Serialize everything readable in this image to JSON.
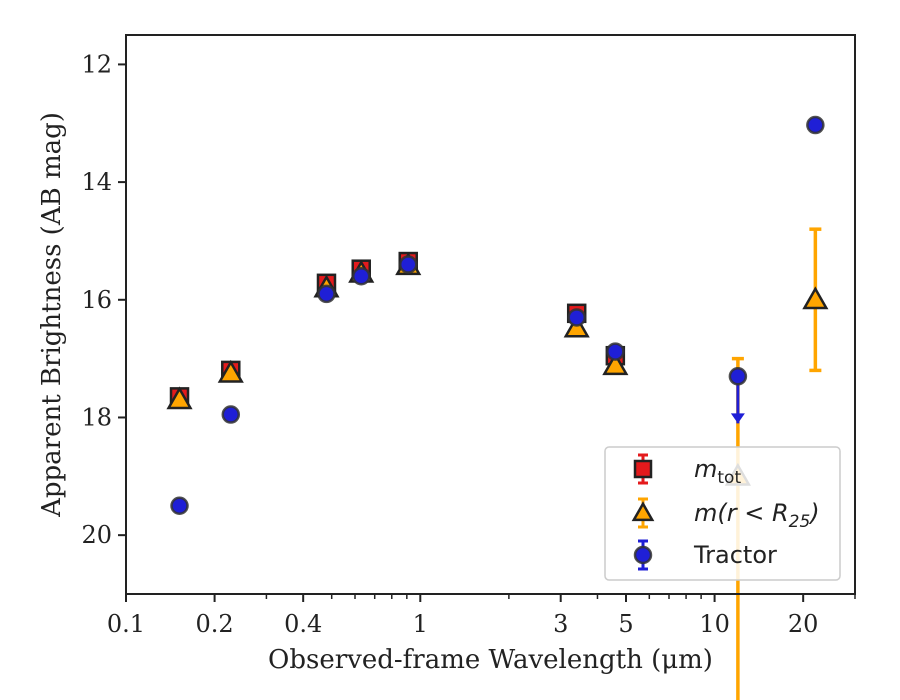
{
  "chart_data": {
    "type": "scatter",
    "xlabel": "Observed-frame Wavelength (μm)",
    "ylabel": "Apparent Brightness (AB mag)",
    "xscale": "log",
    "xlim": [
      0.1,
      30
    ],
    "ylim": [
      21,
      11.5
    ],
    "y_inverted": true,
    "grid": false,
    "legend_location": "lower-right",
    "x_ticks": [
      {
        "value": 0.1,
        "label": "0.1"
      },
      {
        "value": 0.2,
        "label": "0.2"
      },
      {
        "value": 0.4,
        "label": "0.4"
      },
      {
        "value": 1,
        "label": "1"
      },
      {
        "value": 3,
        "label": "3"
      },
      {
        "value": 5,
        "label": "5"
      },
      {
        "value": 10,
        "label": "10"
      },
      {
        "value": 20,
        "label": "20"
      }
    ],
    "y_ticks": [
      {
        "value": 12,
        "label": "12"
      },
      {
        "value": 14,
        "label": "14"
      },
      {
        "value": 16,
        "label": "16"
      },
      {
        "value": 18,
        "label": "18"
      },
      {
        "value": 20,
        "label": "20"
      }
    ],
    "series": [
      {
        "name": "m_tot",
        "legend_main": "m",
        "legend_sub": "tot",
        "marker": "square",
        "color": "#e41a1c",
        "points": [
          {
            "x": 0.152,
            "y": 17.65,
            "err": 0.05
          },
          {
            "x": 0.227,
            "y": 17.2,
            "err": 0.05
          },
          {
            "x": 0.48,
            "y": 15.72,
            "err": 0.05
          },
          {
            "x": 0.63,
            "y": 15.48,
            "err": 0.05
          },
          {
            "x": 0.91,
            "y": 15.35,
            "err": 0.05
          },
          {
            "x": 3.4,
            "y": 16.23,
            "err": 0.05
          },
          {
            "x": 4.6,
            "y": 16.95,
            "err": 0.05
          }
        ]
      },
      {
        "name": "m(r < R25)",
        "legend_main": "m(r < R",
        "legend_sub": "25",
        "legend_close": ")",
        "marker": "triangle",
        "color": "#ffa500",
        "points": [
          {
            "x": 0.152,
            "y": 17.7
          },
          {
            "x": 0.227,
            "y": 17.25
          },
          {
            "x": 0.48,
            "y": 15.8
          },
          {
            "x": 0.63,
            "y": 15.55
          },
          {
            "x": 0.91,
            "y": 15.42
          },
          {
            "x": 3.4,
            "y": 16.48
          },
          {
            "x": 4.6,
            "y": 17.12
          },
          {
            "x": 12,
            "y": 19.0,
            "err_low": 4.3,
            "err_high": 2.0
          },
          {
            "x": 22,
            "y": 16.0,
            "err_low": 1.2,
            "err_high": 1.2
          }
        ]
      },
      {
        "name": "Tractor",
        "legend_main": "Tractor",
        "marker": "circle",
        "color": "#1f1fd6",
        "points": [
          {
            "x": 0.152,
            "y": 19.5
          },
          {
            "x": 0.227,
            "y": 17.95
          },
          {
            "x": 0.48,
            "y": 15.9
          },
          {
            "x": 0.63,
            "y": 15.6
          },
          {
            "x": 0.91,
            "y": 15.4
          },
          {
            "x": 3.4,
            "y": 16.3
          },
          {
            "x": 4.6,
            "y": 16.88
          },
          {
            "x": 12,
            "y": 17.3,
            "upper_limit": true,
            "arrow_to": 18.1
          },
          {
            "x": 22,
            "y": 13.03
          }
        ]
      }
    ]
  }
}
